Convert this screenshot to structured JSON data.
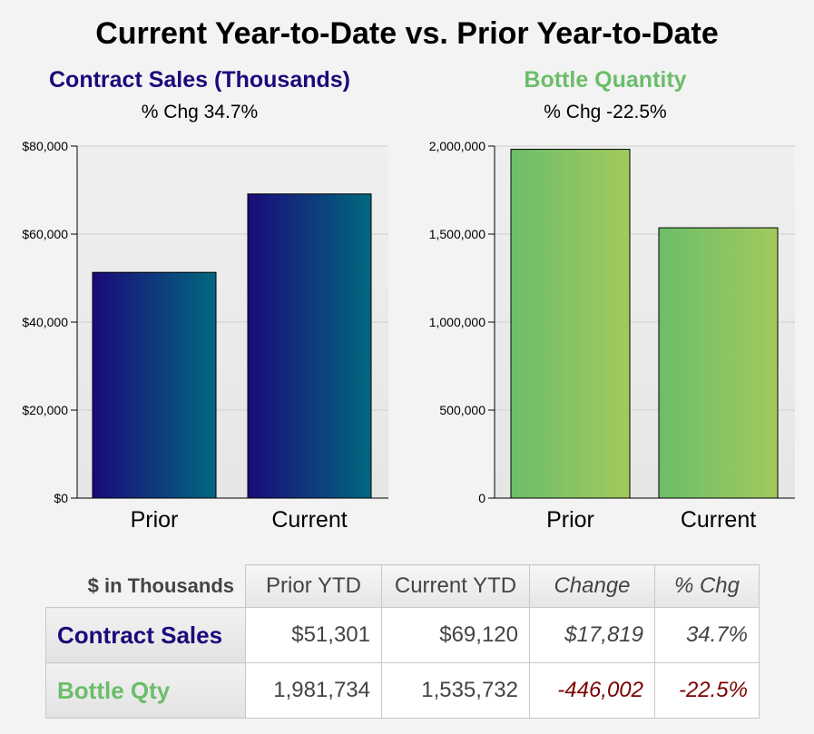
{
  "title": "Current Year-to-Date vs. Prior Year-to-Date",
  "colors": {
    "sales_start": "#1a0a7a",
    "sales_end": "#02687f",
    "qty_start": "#6cbd6a",
    "qty_end": "#a2ca5c",
    "sales_title": "#1a0a7a",
    "qty_title": "#6cbd6a",
    "negative": "#7a0000"
  },
  "chart_data": [
    {
      "type": "bar",
      "title": "Contract Sales (Thousands)",
      "subtitle": "% Chg 34.7%",
      "categories": [
        "Prior",
        "Current"
      ],
      "values": [
        51301,
        69120
      ],
      "ylim": [
        0,
        80000
      ],
      "yticks": [
        0,
        20000,
        40000,
        60000,
        80000
      ],
      "ytick_labels": [
        "$0",
        "$20,000",
        "$40,000",
        "$60,000",
        "$80,000"
      ],
      "grid": true
    },
    {
      "type": "bar",
      "title": "Bottle Quantity",
      "subtitle": "% Chg -22.5%",
      "categories": [
        "Prior",
        "Current"
      ],
      "values": [
        1981734,
        1535732
      ],
      "ylim": [
        0,
        2000000
      ],
      "yticks": [
        0,
        500000,
        1000000,
        1500000,
        2000000
      ],
      "ytick_labels": [
        "0",
        "500,000",
        "1,000,000",
        "1,500,000",
        "2,000,000"
      ],
      "grid": true
    }
  ],
  "table": {
    "corner": "$ in Thousands",
    "headers": [
      "Prior YTD",
      "Current YTD",
      "Change",
      "% Chg"
    ],
    "rows": [
      {
        "label": "Contract Sales",
        "cells": [
          "$51,301",
          "$69,120",
          "$17,819",
          "34.7%"
        ]
      },
      {
        "label": "Bottle Qty",
        "cells": [
          "1,981,734",
          "1,535,732",
          "-446,002",
          "-22.5%"
        ]
      }
    ]
  }
}
